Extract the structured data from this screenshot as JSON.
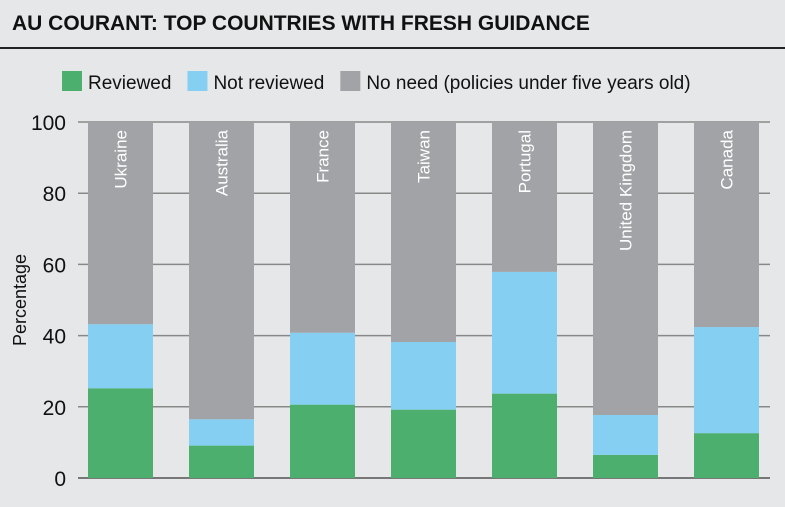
{
  "chart_data": {
    "type": "bar",
    "stacked": true,
    "title": "AU COURANT: TOP COUNTRIES WITH FRESH GUIDANCE",
    "ylabel": "Percentage",
    "xlabel": "",
    "ylim": [
      0,
      100
    ],
    "yticks": [
      "0",
      "20",
      "40",
      "60",
      "80",
      "100"
    ],
    "grid": true,
    "legend_position": "top",
    "categories": [
      "Ukraine",
      "Australia",
      "France",
      "Taiwan",
      "Portugal",
      "United Kingdom",
      "Canada"
    ],
    "series": [
      {
        "name": "Reviewed",
        "color": "#4caf6e",
        "values": [
          25.2,
          9.1,
          20.6,
          19.2,
          23.7,
          6.5,
          12.6
        ]
      },
      {
        "name": "Not reviewed",
        "color": "#84cff2",
        "values": [
          18.0,
          7.4,
          20.2,
          19.0,
          34.2,
          11.2,
          29.8
        ]
      },
      {
        "name": "No need (policies under five years old)",
        "color": "#a1a3a6",
        "values": [
          56.8,
          83.5,
          59.2,
          61.8,
          42.1,
          82.3,
          57.6
        ]
      }
    ]
  }
}
